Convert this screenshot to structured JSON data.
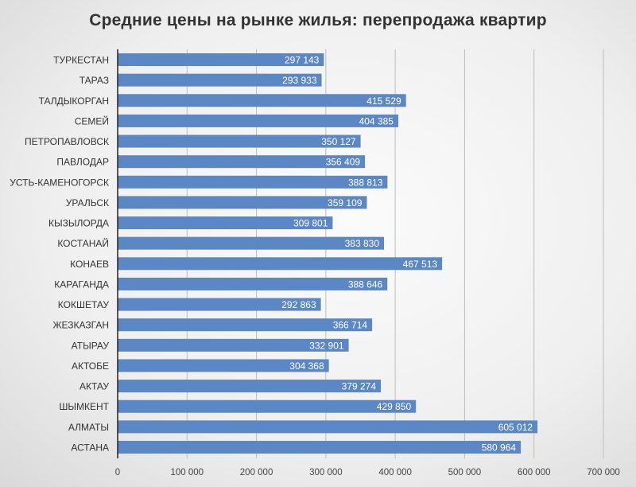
{
  "chart_data": {
    "type": "bar",
    "orientation": "horizontal",
    "title": "Средние цены на рынке жилья: перепродажа квартир",
    "xlabel": "",
    "ylabel": "",
    "xlim": [
      0,
      700000
    ],
    "grid": true,
    "bar_color": "#5b87c5",
    "categories": [
      "ТУРКЕСТАН",
      "ТАРАЗ",
      "ТАЛДЫКОРГАН",
      "СЕМЕЙ",
      "ПЕТРОПАВЛОВСК",
      "ПАВЛОДАР",
      "УСТЬ-КАМЕНОГОРСК",
      "УРАЛЬСК",
      "КЫЗЫЛОРДА",
      "КОСТАНАЙ",
      "КОНАЕВ",
      "КАРАГАНДА",
      "КОКШЕТАУ",
      "ЖЕЗКАЗГАН",
      "АТЫРАУ",
      "АКТОБЕ",
      "АКТАУ",
      "ШЫМКЕНТ",
      "АЛМАТЫ",
      "АСТАНА"
    ],
    "values": [
      297143,
      293933,
      415529,
      404385,
      350127,
      356409,
      388813,
      359109,
      309801,
      383830,
      467513,
      388646,
      292863,
      366714,
      332901,
      304368,
      379274,
      429850,
      605012,
      580964
    ],
    "value_labels": [
      "297 143",
      "293 933",
      "415 529",
      "404 385",
      "350 127",
      "356 409",
      "388 813",
      "359 109",
      "309 801",
      "383 830",
      "467 513",
      "388 646",
      "292 863",
      "366 714",
      "332 901",
      "304 368",
      "379 274",
      "429 850",
      "605 012",
      "580 964"
    ],
    "x_ticks": [
      0,
      100000,
      200000,
      300000,
      400000,
      500000,
      600000,
      700000
    ],
    "x_tick_labels": [
      "0",
      "100 000",
      "200 000",
      "300 000",
      "400 000",
      "500 000",
      "600 000",
      "700 000"
    ]
  }
}
